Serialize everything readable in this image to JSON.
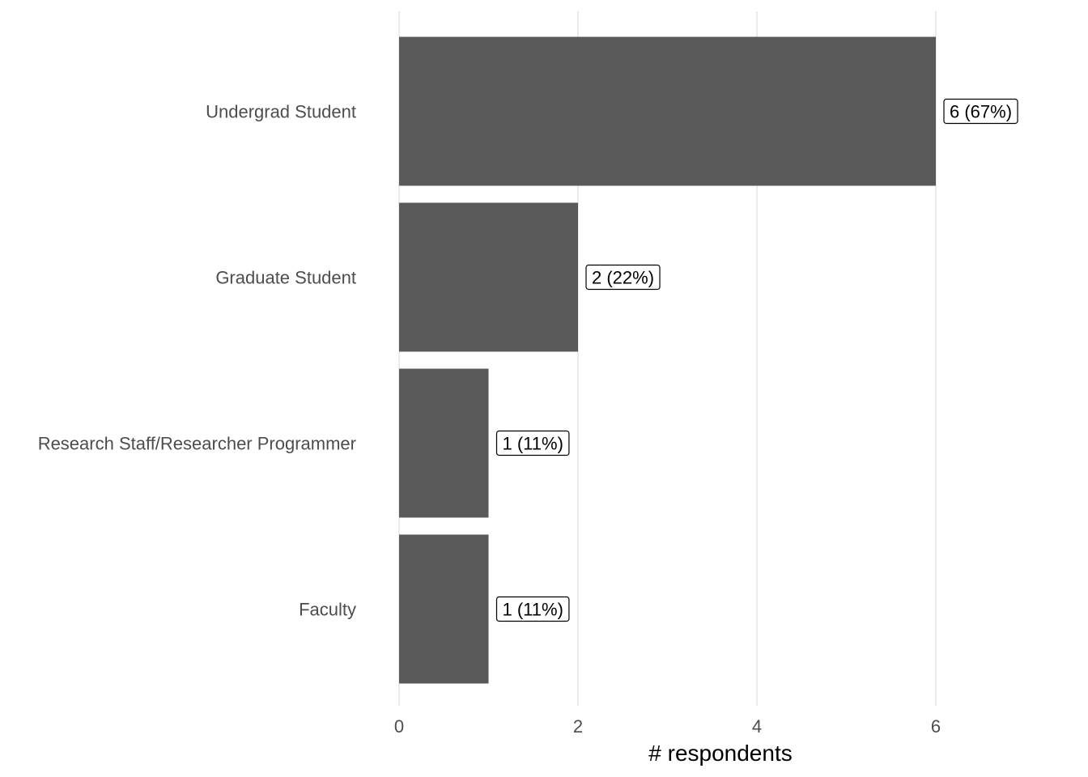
{
  "chart_data": {
    "type": "bar",
    "orientation": "horizontal",
    "categories": [
      "Undergrad Student",
      "Graduate Student",
      "Research Staff/Researcher Programmer",
      "Faculty"
    ],
    "values": [
      6,
      2,
      1,
      1
    ],
    "data_labels": [
      "6 (67%)",
      "2 (22%)",
      "1 (11%)",
      "1 (11%)"
    ],
    "xlabel": "# respondents",
    "ylabel": "",
    "xlim": [
      0,
      7
    ],
    "xticks": [
      0,
      2,
      4,
      6
    ],
    "xtick_labels": [
      "0",
      "2",
      "4",
      "6"
    ],
    "grid": "vertical major gridlines",
    "colors": {
      "bar": "#595959",
      "grid": "#ebebeb",
      "axis_text": "#4d4d4d"
    }
  }
}
